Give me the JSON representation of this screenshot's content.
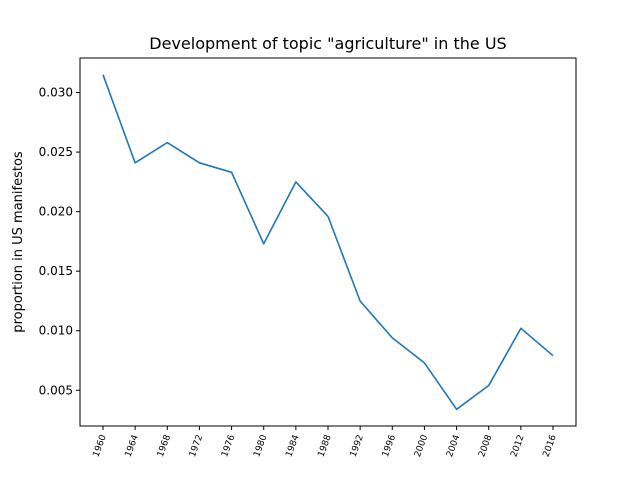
{
  "chart_data": {
    "type": "line",
    "title": "Development of topic \"agriculture\" in the US",
    "xlabel": "",
    "ylabel": "proportion in US manifestos",
    "categories": [
      "1960",
      "1964",
      "1968",
      "1972",
      "1976",
      "1980",
      "1984",
      "1988",
      "1992",
      "1996",
      "2000",
      "2004",
      "2008",
      "2012",
      "2016"
    ],
    "series": [
      {
        "values": [
          0.0315,
          0.0241,
          0.0258,
          0.0241,
          0.0233,
          0.0173,
          0.0225,
          0.0196,
          0.0125,
          0.0094,
          0.0073,
          0.0034,
          0.0054,
          0.0102,
          0.0079
        ],
        "color": "#1f77b4"
      }
    ],
    "ylim": [
      0.002,
      0.0329
    ],
    "yticks": [
      0.005,
      0.01,
      0.015,
      0.02,
      0.025,
      0.03
    ],
    "ytick_labels": [
      "0.005",
      "0.010",
      "0.015",
      "0.020",
      "0.025",
      "0.030"
    ],
    "grid": false
  }
}
